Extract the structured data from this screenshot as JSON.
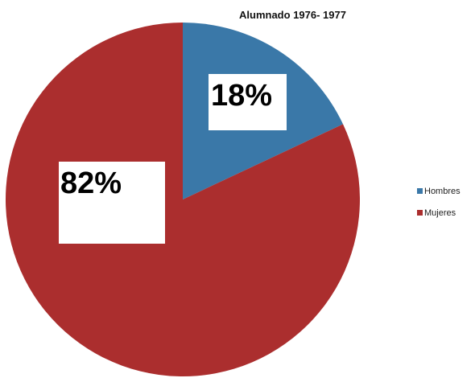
{
  "chart_data": {
    "type": "pie",
    "title": "Alumnado 1976- 1977",
    "categories": [
      "Hombres",
      "Mujeres"
    ],
    "values": [
      18,
      82
    ],
    "labels": [
      "18%",
      "82%"
    ],
    "colors": [
      "#3a78a8",
      "#ab2e2e"
    ],
    "legend_position": "right"
  }
}
